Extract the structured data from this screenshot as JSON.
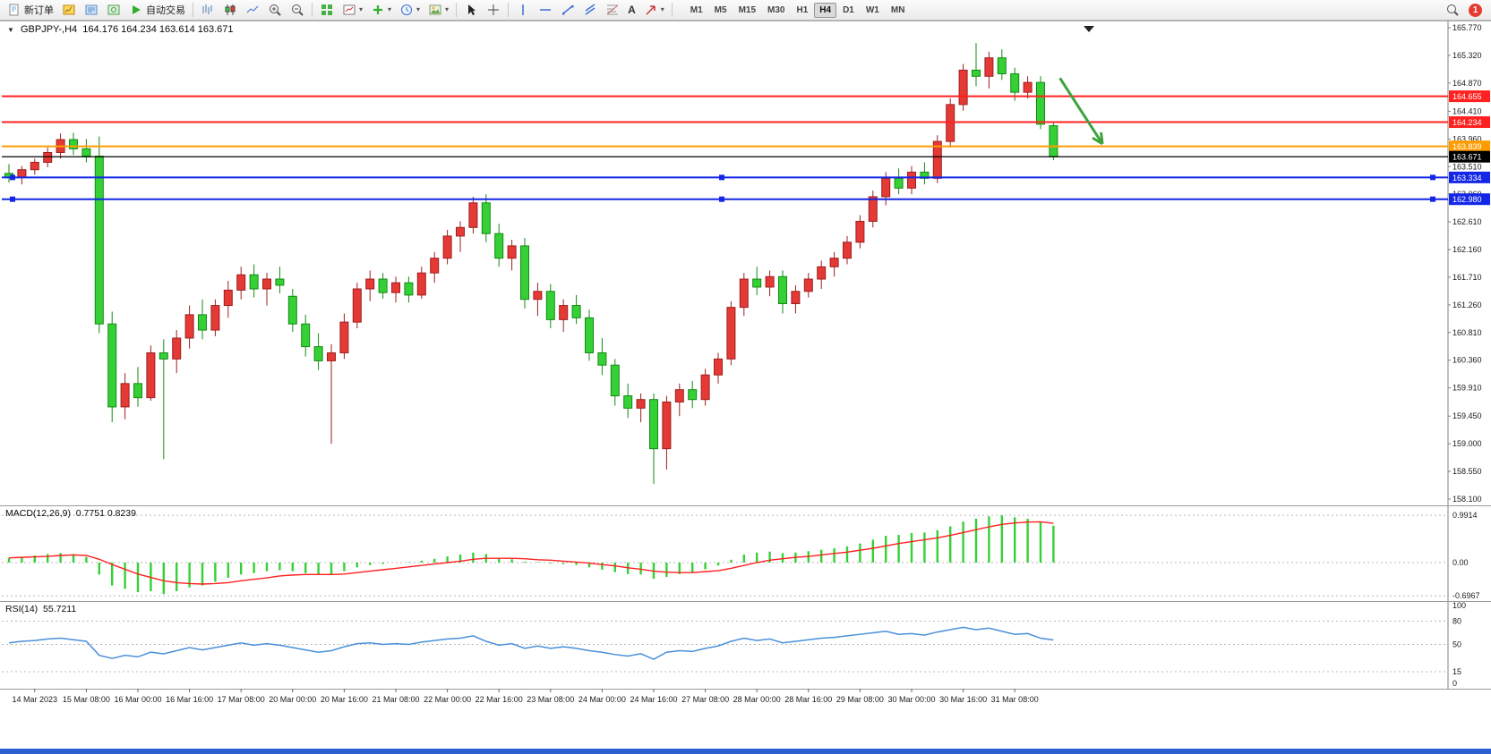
{
  "toolbar": {
    "new_order_label": "新订单",
    "auto_trade_label": "自动交易",
    "text_tool_label": "A",
    "timeframes": [
      "M1",
      "M5",
      "M15",
      "M30",
      "H1",
      "H4",
      "D1",
      "W1",
      "MN"
    ],
    "active_timeframe": "H4",
    "notification_count": "1"
  },
  "chart_header": {
    "symbol": "GBPJPY-,H4",
    "ohlc": "164.176 164.234 163.614 163.671"
  },
  "indicators": {
    "macd_label": "MACD(12,26,9)",
    "macd_values": "0.7751 0.8239",
    "rsi_label": "RSI(14)",
    "rsi_value": "55.7211"
  },
  "chart_data": {
    "type": "candlestick",
    "symbol": "GBPJPY",
    "timeframe": "H4",
    "ylim": [
      158.1,
      165.77
    ],
    "colors": {
      "bull": "#e53935",
      "bull_border": "#9e1f1f",
      "bear": "#35d035",
      "bear_border": "#148a14",
      "macd_hist": "#35d035",
      "macd_signal": "#ff2020",
      "rsi_line": "#4a90d9",
      "axis_text": "#1a1a1a"
    },
    "price_axis_ticks": [
      "165.770",
      "165.320",
      "164.870",
      "164.410",
      "163.960",
      "163.510",
      "163.060",
      "162.610",
      "162.160",
      "161.710",
      "161.260",
      "160.810",
      "160.360",
      "159.910",
      "159.450",
      "159.000",
      "158.550",
      "158.100"
    ],
    "time_axis_ticks": [
      "14 Mar 2023",
      "15 Mar 08:00",
      "16 Mar 00:00",
      "16 Mar 16:00",
      "17 Mar 08:00",
      "20 Mar 00:00",
      "20 Mar 16:00",
      "21 Mar 08:00",
      "22 Mar 00:00",
      "22 Mar 16:00",
      "23 Mar 08:00",
      "24 Mar 00:00",
      "24 Mar 16:00",
      "27 Mar 08:00",
      "28 Mar 00:00",
      "28 Mar 16:00",
      "29 Mar 08:00",
      "30 Mar 00:00",
      "30 Mar 16:00",
      "31 Mar 08:00"
    ],
    "candles": [
      [
        163.4,
        163.55,
        163.25,
        163.33
      ],
      [
        163.33,
        163.52,
        163.22,
        163.46
      ],
      [
        163.46,
        163.64,
        163.38,
        163.58
      ],
      [
        163.58,
        163.82,
        163.5,
        163.74
      ],
      [
        163.74,
        164.05,
        163.64,
        163.95
      ],
      [
        163.95,
        164.06,
        163.7,
        163.8
      ],
      [
        163.8,
        163.96,
        163.58,
        163.68
      ],
      [
        163.68,
        164.0,
        160.8,
        160.95
      ],
      [
        160.95,
        161.15,
        159.35,
        159.6
      ],
      [
        159.6,
        160.15,
        159.4,
        159.98
      ],
      [
        159.98,
        160.25,
        159.6,
        159.75
      ],
      [
        159.75,
        160.6,
        159.7,
        160.48
      ],
      [
        160.48,
        160.7,
        158.75,
        160.38
      ],
      [
        160.38,
        160.85,
        160.15,
        160.72
      ],
      [
        160.72,
        161.25,
        160.55,
        161.1
      ],
      [
        161.1,
        161.35,
        160.7,
        160.85
      ],
      [
        160.85,
        161.35,
        160.75,
        161.25
      ],
      [
        161.25,
        161.65,
        161.05,
        161.5
      ],
      [
        161.5,
        161.88,
        161.35,
        161.75
      ],
      [
        161.75,
        161.92,
        161.38,
        161.52
      ],
      [
        161.52,
        161.78,
        161.25,
        161.68
      ],
      [
        161.68,
        161.88,
        161.45,
        161.58
      ],
      [
        161.4,
        161.52,
        160.82,
        160.95
      ],
      [
        160.95,
        161.1,
        160.42,
        160.58
      ],
      [
        160.58,
        160.8,
        160.2,
        160.35
      ],
      [
        160.35,
        160.62,
        159.0,
        160.48
      ],
      [
        160.48,
        161.12,
        160.38,
        160.98
      ],
      [
        160.98,
        161.62,
        160.88,
        161.52
      ],
      [
        161.52,
        161.82,
        161.32,
        161.68
      ],
      [
        161.68,
        161.78,
        161.36,
        161.46
      ],
      [
        161.46,
        161.72,
        161.3,
        161.62
      ],
      [
        161.62,
        161.72,
        161.3,
        161.42
      ],
      [
        161.42,
        161.88,
        161.36,
        161.78
      ],
      [
        161.78,
        162.12,
        161.62,
        162.02
      ],
      [
        162.02,
        162.48,
        161.92,
        162.38
      ],
      [
        162.38,
        162.62,
        162.12,
        162.52
      ],
      [
        162.52,
        163.02,
        162.42,
        162.92
      ],
      [
        162.92,
        163.06,
        162.28,
        162.42
      ],
      [
        162.42,
        162.58,
        161.88,
        162.02
      ],
      [
        162.02,
        162.32,
        161.82,
        162.22
      ],
      [
        162.22,
        162.35,
        161.2,
        161.35
      ],
      [
        161.35,
        161.62,
        161.08,
        161.48
      ],
      [
        161.48,
        161.6,
        160.88,
        161.02
      ],
      [
        161.02,
        161.35,
        160.82,
        161.25
      ],
      [
        161.25,
        161.42,
        160.95,
        161.05
      ],
      [
        161.05,
        161.18,
        160.35,
        160.48
      ],
      [
        160.48,
        160.72,
        160.12,
        160.28
      ],
      [
        160.28,
        160.38,
        159.62,
        159.78
      ],
      [
        159.78,
        159.98,
        159.42,
        159.58
      ],
      [
        159.58,
        159.82,
        159.35,
        159.72
      ],
      [
        159.72,
        159.82,
        158.35,
        158.92
      ],
      [
        158.92,
        159.78,
        158.58,
        159.68
      ],
      [
        159.68,
        159.98,
        159.45,
        159.88
      ],
      [
        159.88,
        160.02,
        159.58,
        159.72
      ],
      [
        159.72,
        160.22,
        159.62,
        160.12
      ],
      [
        160.12,
        160.48,
        159.98,
        160.38
      ],
      [
        160.38,
        161.32,
        160.28,
        161.22
      ],
      [
        161.22,
        161.78,
        161.08,
        161.68
      ],
      [
        161.68,
        161.88,
        161.42,
        161.55
      ],
      [
        161.55,
        161.82,
        161.4,
        161.72
      ],
      [
        161.72,
        161.82,
        161.12,
        161.28
      ],
      [
        161.28,
        161.58,
        161.12,
        161.48
      ],
      [
        161.48,
        161.78,
        161.38,
        161.68
      ],
      [
        161.68,
        161.98,
        161.52,
        161.88
      ],
      [
        161.88,
        162.12,
        161.72,
        162.02
      ],
      [
        162.02,
        162.38,
        161.92,
        162.28
      ],
      [
        162.28,
        162.72,
        162.18,
        162.62
      ],
      [
        162.62,
        163.12,
        162.52,
        163.02
      ],
      [
        163.02,
        163.42,
        162.88,
        163.32
      ],
      [
        163.32,
        163.48,
        163.06,
        163.16
      ],
      [
        163.16,
        163.52,
        163.06,
        163.42
      ],
      [
        163.42,
        163.58,
        163.22,
        163.32
      ],
      [
        163.32,
        164.02,
        163.24,
        163.92
      ],
      [
        163.92,
        164.62,
        163.82,
        164.52
      ],
      [
        164.52,
        165.18,
        164.42,
        165.08
      ],
      [
        165.08,
        165.52,
        164.82,
        164.98
      ],
      [
        164.98,
        165.38,
        164.78,
        165.28
      ],
      [
        165.28,
        165.42,
        164.92,
        165.02
      ],
      [
        165.02,
        165.12,
        164.58,
        164.72
      ],
      [
        164.72,
        164.98,
        164.62,
        164.88
      ],
      [
        164.88,
        164.98,
        164.12,
        164.2
      ],
      [
        164.176,
        164.234,
        163.614,
        163.671
      ]
    ],
    "hlines": [
      {
        "price": 164.655,
        "color": "#ff2020",
        "label": "164.655",
        "width": 2,
        "handles": false
      },
      {
        "price": 164.234,
        "color": "#ff2020",
        "label": "164.234",
        "width": 2,
        "handles": false
      },
      {
        "price": 163.839,
        "color": "#ff9c00",
        "label": "163.839",
        "width": 2,
        "handles": false
      },
      {
        "price": 163.334,
        "color": "#1427e6",
        "label": "163.334",
        "width": 2,
        "handles": true
      },
      {
        "price": 162.98,
        "color": "#1427e6",
        "label": "162.980",
        "width": 2,
        "handles": true
      }
    ],
    "price_marker": {
      "price": 163.671,
      "label": "163.671",
      "color": "#000000"
    },
    "annotation_arrow": {
      "from": {
        "i": 81.5,
        "price": 164.95
      },
      "to": {
        "i": 84.8,
        "price": 163.88
      },
      "color": "#3da33d"
    },
    "macd": {
      "ylim": [
        -0.75,
        1.05
      ],
      "ticks": [
        {
          "v": 0.9914,
          "label": "0.9914"
        },
        {
          "v": 0,
          "label": "0.00"
        },
        {
          "v": -0.6967,
          "label": "-0.6967"
        }
      ],
      "values": [
        0.1,
        0.12,
        0.15,
        0.18,
        0.2,
        0.18,
        0.12,
        -0.25,
        -0.48,
        -0.55,
        -0.62,
        -0.6,
        -0.66,
        -0.6,
        -0.52,
        -0.48,
        -0.4,
        -0.32,
        -0.25,
        -0.22,
        -0.18,
        -0.16,
        -0.18,
        -0.22,
        -0.26,
        -0.25,
        -0.18,
        -0.1,
        -0.05,
        -0.03,
        0.0,
        0.01,
        0.04,
        0.08,
        0.13,
        0.17,
        0.21,
        0.18,
        0.1,
        0.07,
        0.02,
        0.01,
        -0.02,
        -0.03,
        -0.05,
        -0.1,
        -0.15,
        -0.2,
        -0.24,
        -0.25,
        -0.34,
        -0.3,
        -0.24,
        -0.2,
        -0.14,
        -0.06,
        0.06,
        0.17,
        0.21,
        0.23,
        0.2,
        0.21,
        0.24,
        0.27,
        0.3,
        0.34,
        0.4,
        0.48,
        0.56,
        0.58,
        0.62,
        0.63,
        0.68,
        0.76,
        0.86,
        0.92,
        0.97,
        0.9914,
        0.95,
        0.92,
        0.86,
        0.7751
      ],
      "signal": [
        0.1,
        0.11,
        0.12,
        0.13,
        0.15,
        0.16,
        0.15,
        0.07,
        -0.04,
        -0.14,
        -0.24,
        -0.31,
        -0.38,
        -0.42,
        -0.44,
        -0.45,
        -0.44,
        -0.42,
        -0.38,
        -0.35,
        -0.32,
        -0.28,
        -0.26,
        -0.25,
        -0.25,
        -0.25,
        -0.24,
        -0.21,
        -0.18,
        -0.15,
        -0.12,
        -0.09,
        -0.06,
        -0.03,
        0.0,
        0.03,
        0.07,
        0.09,
        0.09,
        0.09,
        0.08,
        0.06,
        0.05,
        0.03,
        0.01,
        -0.01,
        -0.04,
        -0.07,
        -0.11,
        -0.14,
        -0.18,
        -0.2,
        -0.21,
        -0.21,
        -0.19,
        -0.17,
        -0.12,
        -0.06,
        0.0,
        0.05,
        0.08,
        0.11,
        0.13,
        0.16,
        0.19,
        0.22,
        0.26,
        0.3,
        0.35,
        0.4,
        0.44,
        0.48,
        0.52,
        0.57,
        0.63,
        0.69,
        0.75,
        0.8,
        0.83,
        0.85,
        0.855,
        0.8239
      ]
    },
    "rsi": {
      "ylim": [
        0,
        100
      ],
      "levels": [
        {
          "v": 100,
          "label": "100",
          "line": false
        },
        {
          "v": 80,
          "label": "80",
          "line": true
        },
        {
          "v": 50,
          "label": "50",
          "line": true
        },
        {
          "v": 15,
          "label": "15",
          "line": true
        },
        {
          "v": 0,
          "label": "0",
          "line": false
        }
      ],
      "values": [
        52,
        54,
        55,
        57,
        58,
        56,
        54,
        36,
        32,
        36,
        34,
        40,
        38,
        42,
        46,
        43,
        46,
        49,
        52,
        49,
        51,
        49,
        46,
        43,
        40,
        42,
        47,
        51,
        52,
        50,
        51,
        50,
        53,
        55,
        57,
        58,
        61,
        54,
        49,
        51,
        45,
        48,
        45,
        47,
        45,
        42,
        40,
        37,
        35,
        38,
        31,
        40,
        42,
        41,
        45,
        48,
        54,
        58,
        55,
        57,
        52,
        54,
        56,
        58,
        59,
        61,
        63,
        65,
        67,
        63,
        64,
        62,
        66,
        69,
        72,
        69,
        71,
        67,
        63,
        64,
        58,
        55.7211
      ]
    }
  }
}
